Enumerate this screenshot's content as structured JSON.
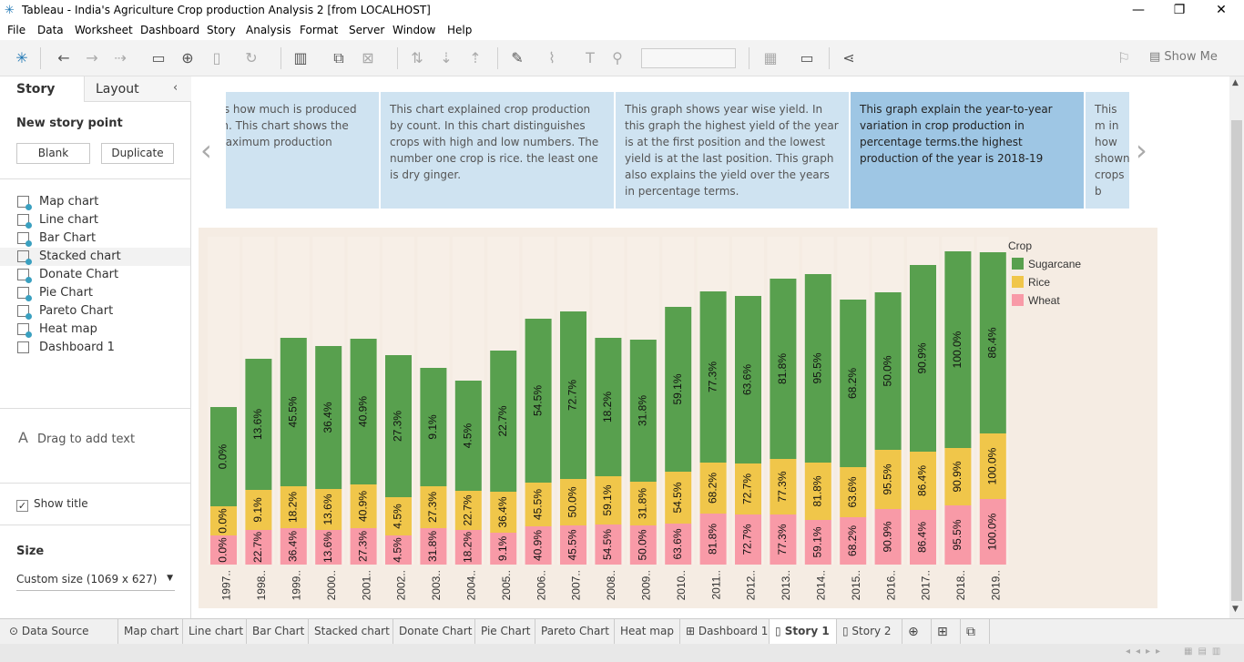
{
  "window": {
    "title": "Tableau - India's Agriculture Crop production Analysis 2 [from LOCALHOST]",
    "minimize": "—",
    "restore": "❐",
    "close": "✕"
  },
  "menu": [
    "File",
    "Data",
    "Worksheet",
    "Dashboard",
    "Story",
    "Analysis",
    "Format",
    "Server",
    "Window",
    "Help"
  ],
  "toolbar": {
    "show_me": "Show Me"
  },
  "left_pane": {
    "tab_story": "Story",
    "tab_layout": "Layout",
    "new_story_point": "New story point",
    "blank_button": "Blank",
    "duplicate_button": "Duplicate",
    "sheets": [
      "Map chart",
      "Line chart",
      "Bar Chart",
      "Stacked chart",
      "Donate Chart",
      "Pie Chart",
      "Pareto Chart",
      "Heat map",
      "Dashboard 1"
    ],
    "drag_text": "Drag to add text",
    "show_title": "Show title",
    "size_label": "Size",
    "size_value": "Custom size (1069 x 627)"
  },
  "captions": [
    "ws how much is produced on. This chart shows the  maximum production",
    "This chart explained crop production by count. In this chart distinguishes crops with high and low numbers. The number one crop is rice. the least one is dry ginger.",
    "This graph shows year wise yield. In this graph the highest yield of the year is at the first position and the lowest yield is at the last position. This graph also explains the yield over the years in percentage terms.",
    "This graph explain the year-to-year variation in crop production in percentage terms.the highest production of the year is 2018-19",
    "This m in how shown crops b"
  ],
  "chart_data": {
    "type": "bar",
    "stacked": true,
    "legend_title": "Crop",
    "legend_position": "top-right",
    "categories": [
      "1997..",
      "1998..",
      "1999..",
      "2000..",
      "2001..",
      "2002..",
      "2003..",
      "2004..",
      "2005..",
      "2006..",
      "2007..",
      "2008..",
      "2009..",
      "2010..",
      "2011..",
      "2012..",
      "2013..",
      "2014..",
      "2015..",
      "2016..",
      "2017..",
      "2018..",
      "2019.."
    ],
    "series": [
      {
        "name": "Wheat",
        "color": "#f89aa7",
        "labels": [
          "0.0%",
          "22.7%",
          "36.4%",
          "13.6%",
          "27.3%",
          "4.5%",
          "31.8%",
          "18.2%",
          "9.1%",
          "40.9%",
          "45.5%",
          "54.5%",
          "50.0%",
          "63.6%",
          "81.8%",
          "72.7%",
          "77.3%",
          "59.1%",
          "68.2%",
          "90.9%",
          "86.4%",
          "95.5%",
          "100.0%"
        ],
        "values": [
          32,
          38,
          40,
          38,
          40,
          32,
          40,
          38,
          35,
          42,
          43,
          44,
          43,
          45,
          56,
          55,
          55,
          49,
          52,
          61,
          60,
          65,
          72
        ]
      },
      {
        "name": "Rice",
        "color": "#f0c64a",
        "labels": [
          "0.0%",
          "9.1%",
          "18.2%",
          "13.6%",
          "40.9%",
          "4.5%",
          "27.3%",
          "22.7%",
          "36.4%",
          "45.5%",
          "50.0%",
          "59.1%",
          "31.8%",
          "54.5%",
          "68.2%",
          "72.7%",
          "77.3%",
          "81.8%",
          "63.6%",
          "95.5%",
          "86.4%",
          "90.9%",
          "100.0%"
        ],
        "values": [
          32,
          44,
          46,
          45,
          48,
          42,
          46,
          43,
          45,
          48,
          51,
          53,
          48,
          57,
          56,
          56,
          61,
          63,
          55,
          65,
          64,
          63,
          72
        ]
      },
      {
        "name": "Sugarcane",
        "color": "#58a04e",
        "labels": [
          "0.0%",
          "13.6%",
          "45.5%",
          "36.4%",
          "40.9%",
          "27.3%",
          "9.1%",
          "4.5%",
          "22.7%",
          "54.5%",
          "72.7%",
          "18.2%",
          "31.8%",
          "59.1%",
          "77.3%",
          "63.6%",
          "81.8%",
          "95.5%",
          "68.2%",
          "50.0%",
          "90.9%",
          "100.0%",
          "86.4%"
        ],
        "values": [
          109,
          144,
          163,
          157,
          160,
          156,
          130,
          121,
          155,
          180,
          184,
          152,
          156,
          181,
          188,
          184,
          198,
          207,
          184,
          173,
          205,
          216,
          199
        ]
      }
    ]
  },
  "bottom_tabs": [
    "Data Source",
    "Map chart",
    "Line chart",
    "Bar Chart",
    "Stacked chart",
    "Donate Chart",
    "Pie Chart",
    "Pareto Chart",
    "Heat map",
    "Dashboard 1",
    "Story 1",
    "Story 2"
  ]
}
